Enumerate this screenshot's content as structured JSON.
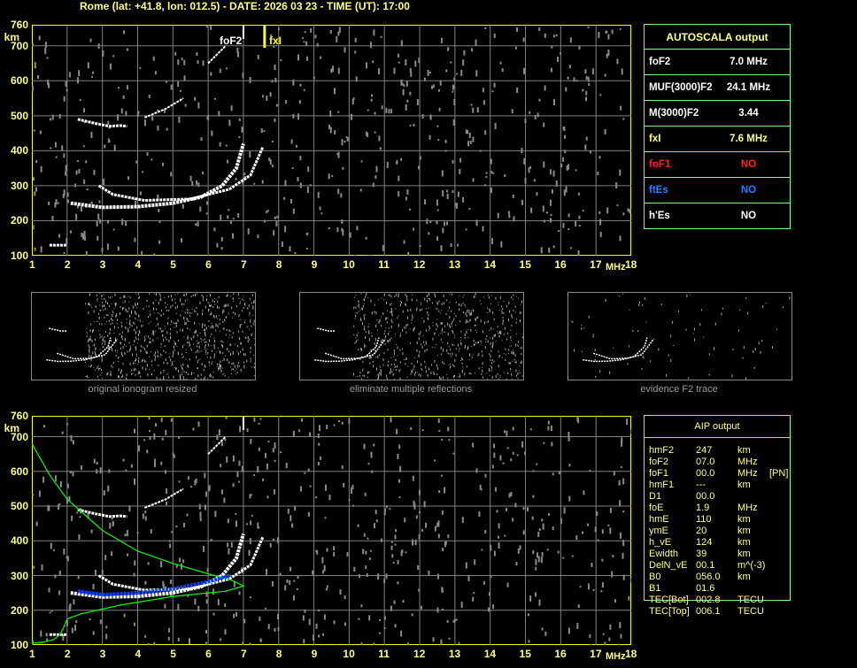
{
  "header": {
    "title": "Rome (lat: +41.8, lon: 012.5) - DATE: 2026 03 23 - TIME (UT): 17:00"
  },
  "axes": {
    "height_ticks": [
      "760",
      "700",
      "600",
      "500",
      "400",
      "300",
      "200",
      "100"
    ],
    "height_unit": "km",
    "freq_ticks": [
      "1",
      "2",
      "3",
      "4",
      "5",
      "6",
      "7",
      "8",
      "9",
      "10",
      "11",
      "12",
      "13",
      "14",
      "15",
      "16",
      "17",
      "18"
    ],
    "freq_unit": "MHz"
  },
  "markers": {
    "foF2_label": "foF2",
    "fxI_label": "fxI",
    "foF2_mhz": 7.0,
    "fxI_mhz": 7.6
  },
  "colors": {
    "grid": "#808080",
    "axis_text": "#ffff80",
    "border": "#80ff80",
    "frame": "#ffff00",
    "foF1": "#ff0000",
    "ftEs": "#0080ff",
    "profile": "#00ff00",
    "trace": "#ffffff"
  },
  "autoscala": {
    "title": "AUTOSCALA output",
    "rows": [
      {
        "key": "foF2",
        "value": "7.0 MHz",
        "color": "#ffffff"
      },
      {
        "key": "MUF(3000)F2",
        "value": "24.1 MHz",
        "color": "#ffffff"
      },
      {
        "key": "M(3000)F2",
        "value": "3.44",
        "color": "#ffffff"
      },
      {
        "key": "fxI",
        "value": "7.6 MHz",
        "color": "#ffff80"
      },
      {
        "key": "foF1",
        "value": "NO",
        "color": "#ff2020"
      },
      {
        "key": "ftEs",
        "value": "NO",
        "color": "#2080ff"
      },
      {
        "key": "h'Es",
        "value": "NO",
        "color": "#ffffff"
      }
    ]
  },
  "thumbnails": [
    {
      "caption": "original ionogram resized"
    },
    {
      "caption": "eliminate multiple reflections"
    },
    {
      "caption": "evidence F2 trace"
    }
  ],
  "aip": {
    "title": "AIP output",
    "rows": [
      {
        "name": "hmF2",
        "value": "247",
        "unit": "km",
        "extra": ""
      },
      {
        "name": "foF2",
        "value": "07.0",
        "unit": "MHz",
        "extra": ""
      },
      {
        "name": "foF1",
        "value": "00.0",
        "unit": "MHz",
        "extra": "[PN]"
      },
      {
        "name": "hmF1",
        "value": "---",
        "unit": "km",
        "extra": ""
      },
      {
        "name": "D1",
        "value": "00.0",
        "unit": "",
        "extra": ""
      },
      {
        "name": "foE",
        "value": "1.9",
        "unit": "MHz",
        "extra": ""
      },
      {
        "name": "hmE",
        "value": "110",
        "unit": "km",
        "extra": ""
      },
      {
        "name": "ymE",
        "value": "20",
        "unit": "km",
        "extra": ""
      },
      {
        "name": "h_vE",
        "value": "124",
        "unit": "km",
        "extra": ""
      },
      {
        "name": "Ewidth",
        "value": "39",
        "unit": "km",
        "extra": ""
      },
      {
        "name": "DelN_vE",
        "value": "00.1",
        "unit": "m^(-3)",
        "extra": ""
      },
      {
        "name": "B0",
        "value": "056.0",
        "unit": "km",
        "extra": ""
      },
      {
        "name": "B1",
        "value": "01.6",
        "unit": "",
        "extra": ""
      },
      {
        "name": "TEC[Bot]",
        "value": "002.8",
        "unit": "TECU",
        "extra": ""
      },
      {
        "name": "TEC[Top]",
        "value": "006.1",
        "unit": "TECU",
        "extra": ""
      }
    ]
  }
}
